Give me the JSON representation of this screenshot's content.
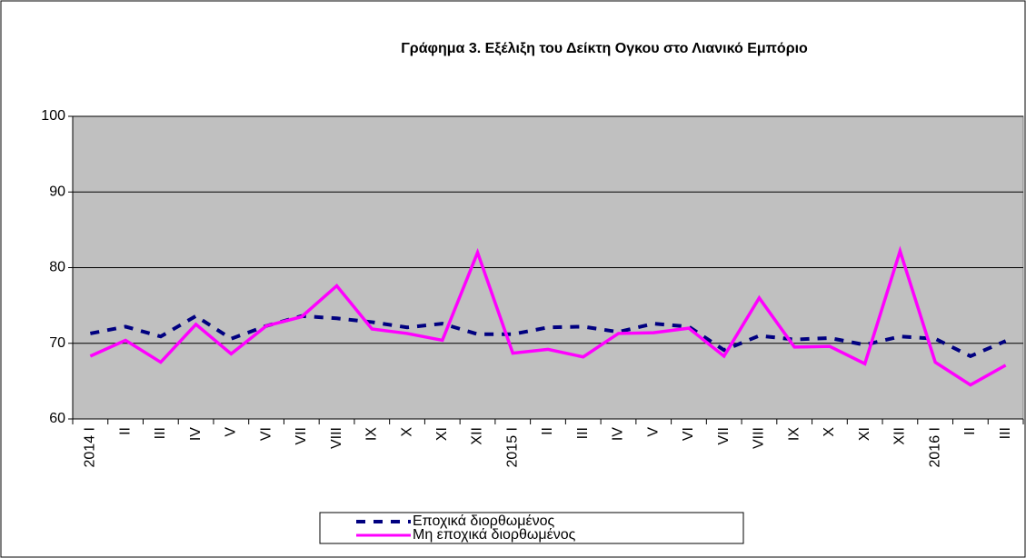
{
  "chart_data": {
    "type": "line",
    "title": "Γράφημα 3. Εξέλιξη του Δείκτη Ογκου στο Λιανικό Εμπόριο",
    "categories": [
      "2014 I",
      "II",
      "III",
      "IV",
      "V",
      "VI",
      "VII",
      "VIII",
      "IX",
      "X",
      "XI",
      "XII",
      "2015 I",
      "II",
      "III",
      "IV",
      "V",
      "VI",
      "VII",
      "VIII",
      "IX",
      "X",
      "XI",
      "XII",
      "2016 I",
      "II",
      "III"
    ],
    "series": [
      {
        "name": "Εποχικά διορθωμένος",
        "color": "#000080",
        "dashed": true,
        "values": [
          71.3,
          72.2,
          70.9,
          73.6,
          70.6,
          72.3,
          73.6,
          73.3,
          72.8,
          72.1,
          72.6,
          71.2,
          71.2,
          72.1,
          72.2,
          71.5,
          72.6,
          72.2,
          69.1,
          71.0,
          70.5,
          70.7,
          69.8,
          70.9,
          70.6,
          68.3,
          70.3
        ]
      },
      {
        "name": "Μη εποχικά διορθωμένος",
        "color": "#ff00ff",
        "dashed": false,
        "values": [
          68.3,
          70.4,
          67.5,
          72.5,
          68.6,
          72.3,
          73.5,
          77.6,
          71.9,
          71.3,
          70.4,
          82.0,
          68.7,
          69.2,
          68.2,
          71.3,
          71.4,
          72.0,
          68.3,
          76.0,
          69.5,
          69.6,
          67.3,
          82.2,
          67.5,
          64.5,
          67.1
        ]
      }
    ],
    "ylim": [
      60,
      100
    ],
    "yticks": [
      60,
      70,
      80,
      90,
      100
    ],
    "grid": true,
    "legend": "bottom"
  }
}
